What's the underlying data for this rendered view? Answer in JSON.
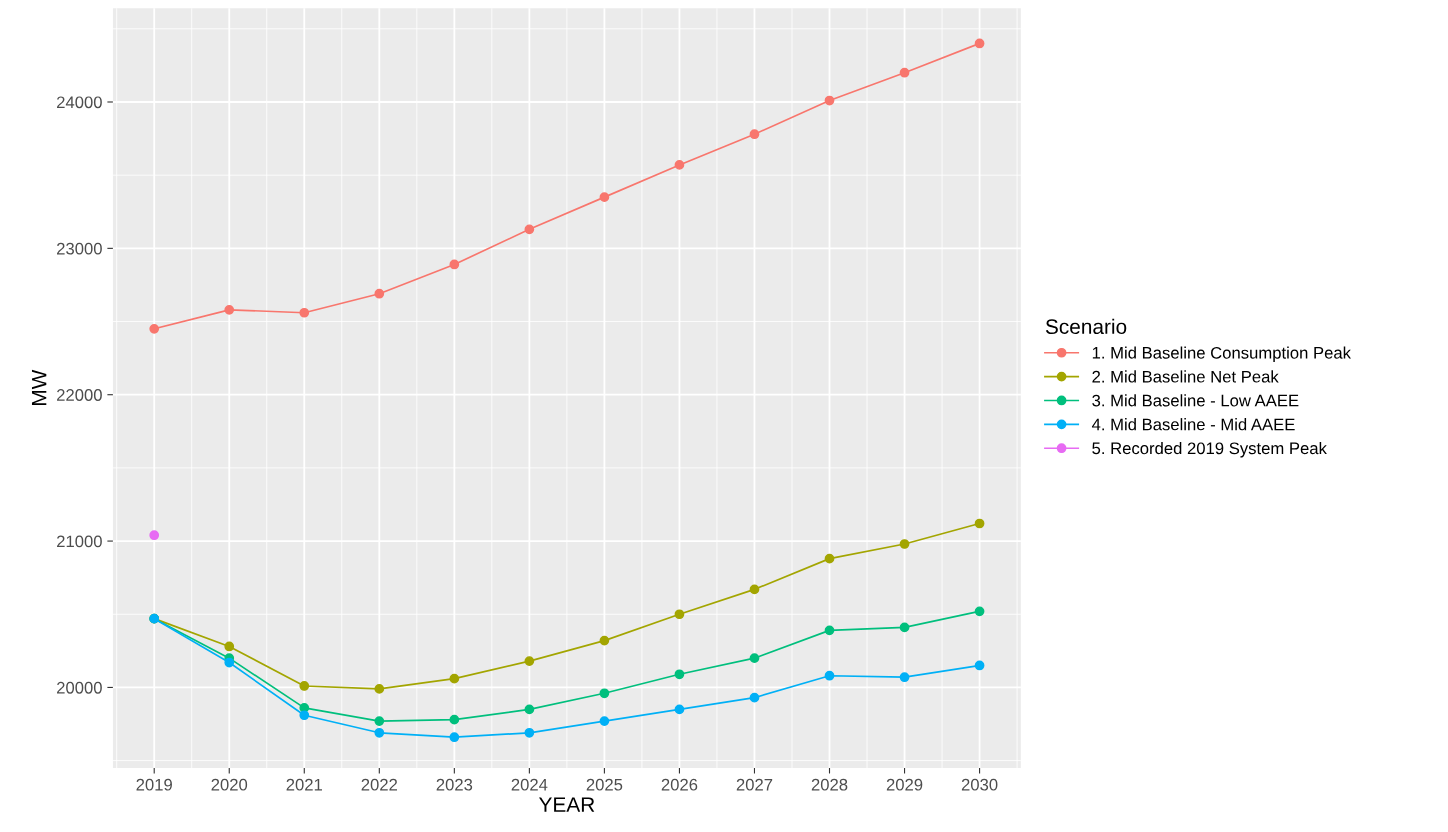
{
  "chart_data": {
    "type": "line",
    "xlabel": "YEAR",
    "ylabel": "MW",
    "legend_title": "Scenario",
    "legend": "right",
    "grid": true,
    "marker": "circle",
    "line_style": "solid",
    "x": [
      2019,
      2020,
      2021,
      2022,
      2023,
      2024,
      2025,
      2026,
      2027,
      2028,
      2029,
      2030
    ],
    "xlim": [
      2018.45,
      2030.55
    ],
    "xticks": [
      2019,
      2020,
      2021,
      2022,
      2023,
      2024,
      2025,
      2026,
      2027,
      2028,
      2029,
      2030
    ],
    "ylim": [
      19450,
      24640
    ],
    "yticks": [
      20000,
      21000,
      22000,
      23000,
      24000
    ],
    "series": [
      {
        "name": "1. Mid Baseline Consumption Peak",
        "color": "#f8766d",
        "values": [
          22450,
          22580,
          22560,
          22690,
          22890,
          23130,
          23350,
          23570,
          23780,
          24010,
          24200,
          24400
        ]
      },
      {
        "name": "2. Mid Baseline Net Peak",
        "color": "#a3a500",
        "values": [
          20470,
          20280,
          20010,
          19990,
          20060,
          20180,
          20320,
          20500,
          20670,
          20880,
          20980,
          21120
        ]
      },
      {
        "name": "3. Mid Baseline - Low AAEE",
        "color": "#00bf7d",
        "values": [
          20470,
          20200,
          19860,
          19770,
          19780,
          19850,
          19960,
          20090,
          20200,
          20390,
          20410,
          20520
        ]
      },
      {
        "name": "4. Mid Baseline - Mid AAEE",
        "color": "#00b0f6",
        "values": [
          20470,
          20170,
          19810,
          19690,
          19660,
          19690,
          19770,
          19850,
          19930,
          20080,
          20070,
          20150
        ]
      },
      {
        "name": "5. Recorded 2019 System Peak",
        "color": "#e76bf3",
        "x": [
          2019
        ],
        "values": [
          21040
        ]
      }
    ]
  }
}
